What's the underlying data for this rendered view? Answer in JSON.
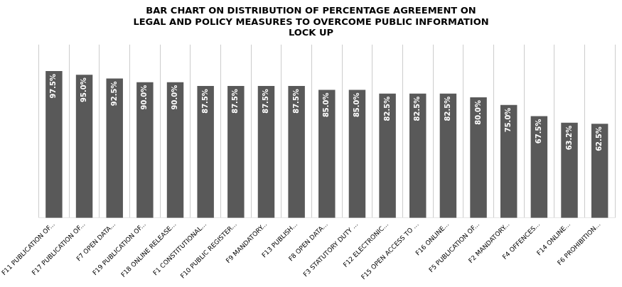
{
  "chart_data": {
    "type": "bar",
    "title": "BAR CHART ON DISTRIBUTION OF PERCENTAGE AGREEMENT ON\nLEGAL AND POLICY MEASURES TO OVERCOME PUBLIC INFORMATION\nLOCK UP",
    "categories": [
      "F11 PUBLICATION OF...",
      "F17 PUBLICATION OF...",
      "F7 OPEN DATA...",
      "F19 PUBLICATION OF...",
      "F18 ONLINE RELEASE...",
      "F1 CONSTITUTIONAL...",
      "F10 PUBLIC REGISTER...",
      "F9 MANDATORY...",
      "F13 PUBLISH...",
      "F8 OPEN DATA...",
      "F3 STATUTORY DUTY ...",
      "F12 ELECTRONIC...",
      "F15 OPEN ACCESS TO ...",
      "F16 ONLINE...",
      "F5 PUBLICATION OF...",
      "F2 MANDATORY...",
      "F4 OFFENCES...",
      "F14 ONLINE...",
      "F6 PROHIBITION..."
    ],
    "values": [
      97.5,
      95.0,
      92.5,
      90.0,
      90.0,
      87.5,
      87.5,
      87.5,
      87.5,
      85.0,
      85.0,
      82.5,
      82.5,
      82.5,
      80.0,
      75.0,
      67.5,
      63.2,
      62.5
    ],
    "value_labels": [
      "97.5%",
      "95.0%",
      "92.5%",
      "90.0%",
      "90.0%",
      "87.5%",
      "87.5%",
      "87.5%",
      "87.5%",
      "85.0%",
      "85.0%",
      "82.5%",
      "82.5%",
      "82.5%",
      "80.0%",
      "75.0%",
      "67.5%",
      "63.2%",
      "62.5%"
    ],
    "color": "#595959",
    "ylim": [
      0,
      115
    ],
    "grid": true,
    "data_labels": true,
    "tick_labels": "x"
  }
}
